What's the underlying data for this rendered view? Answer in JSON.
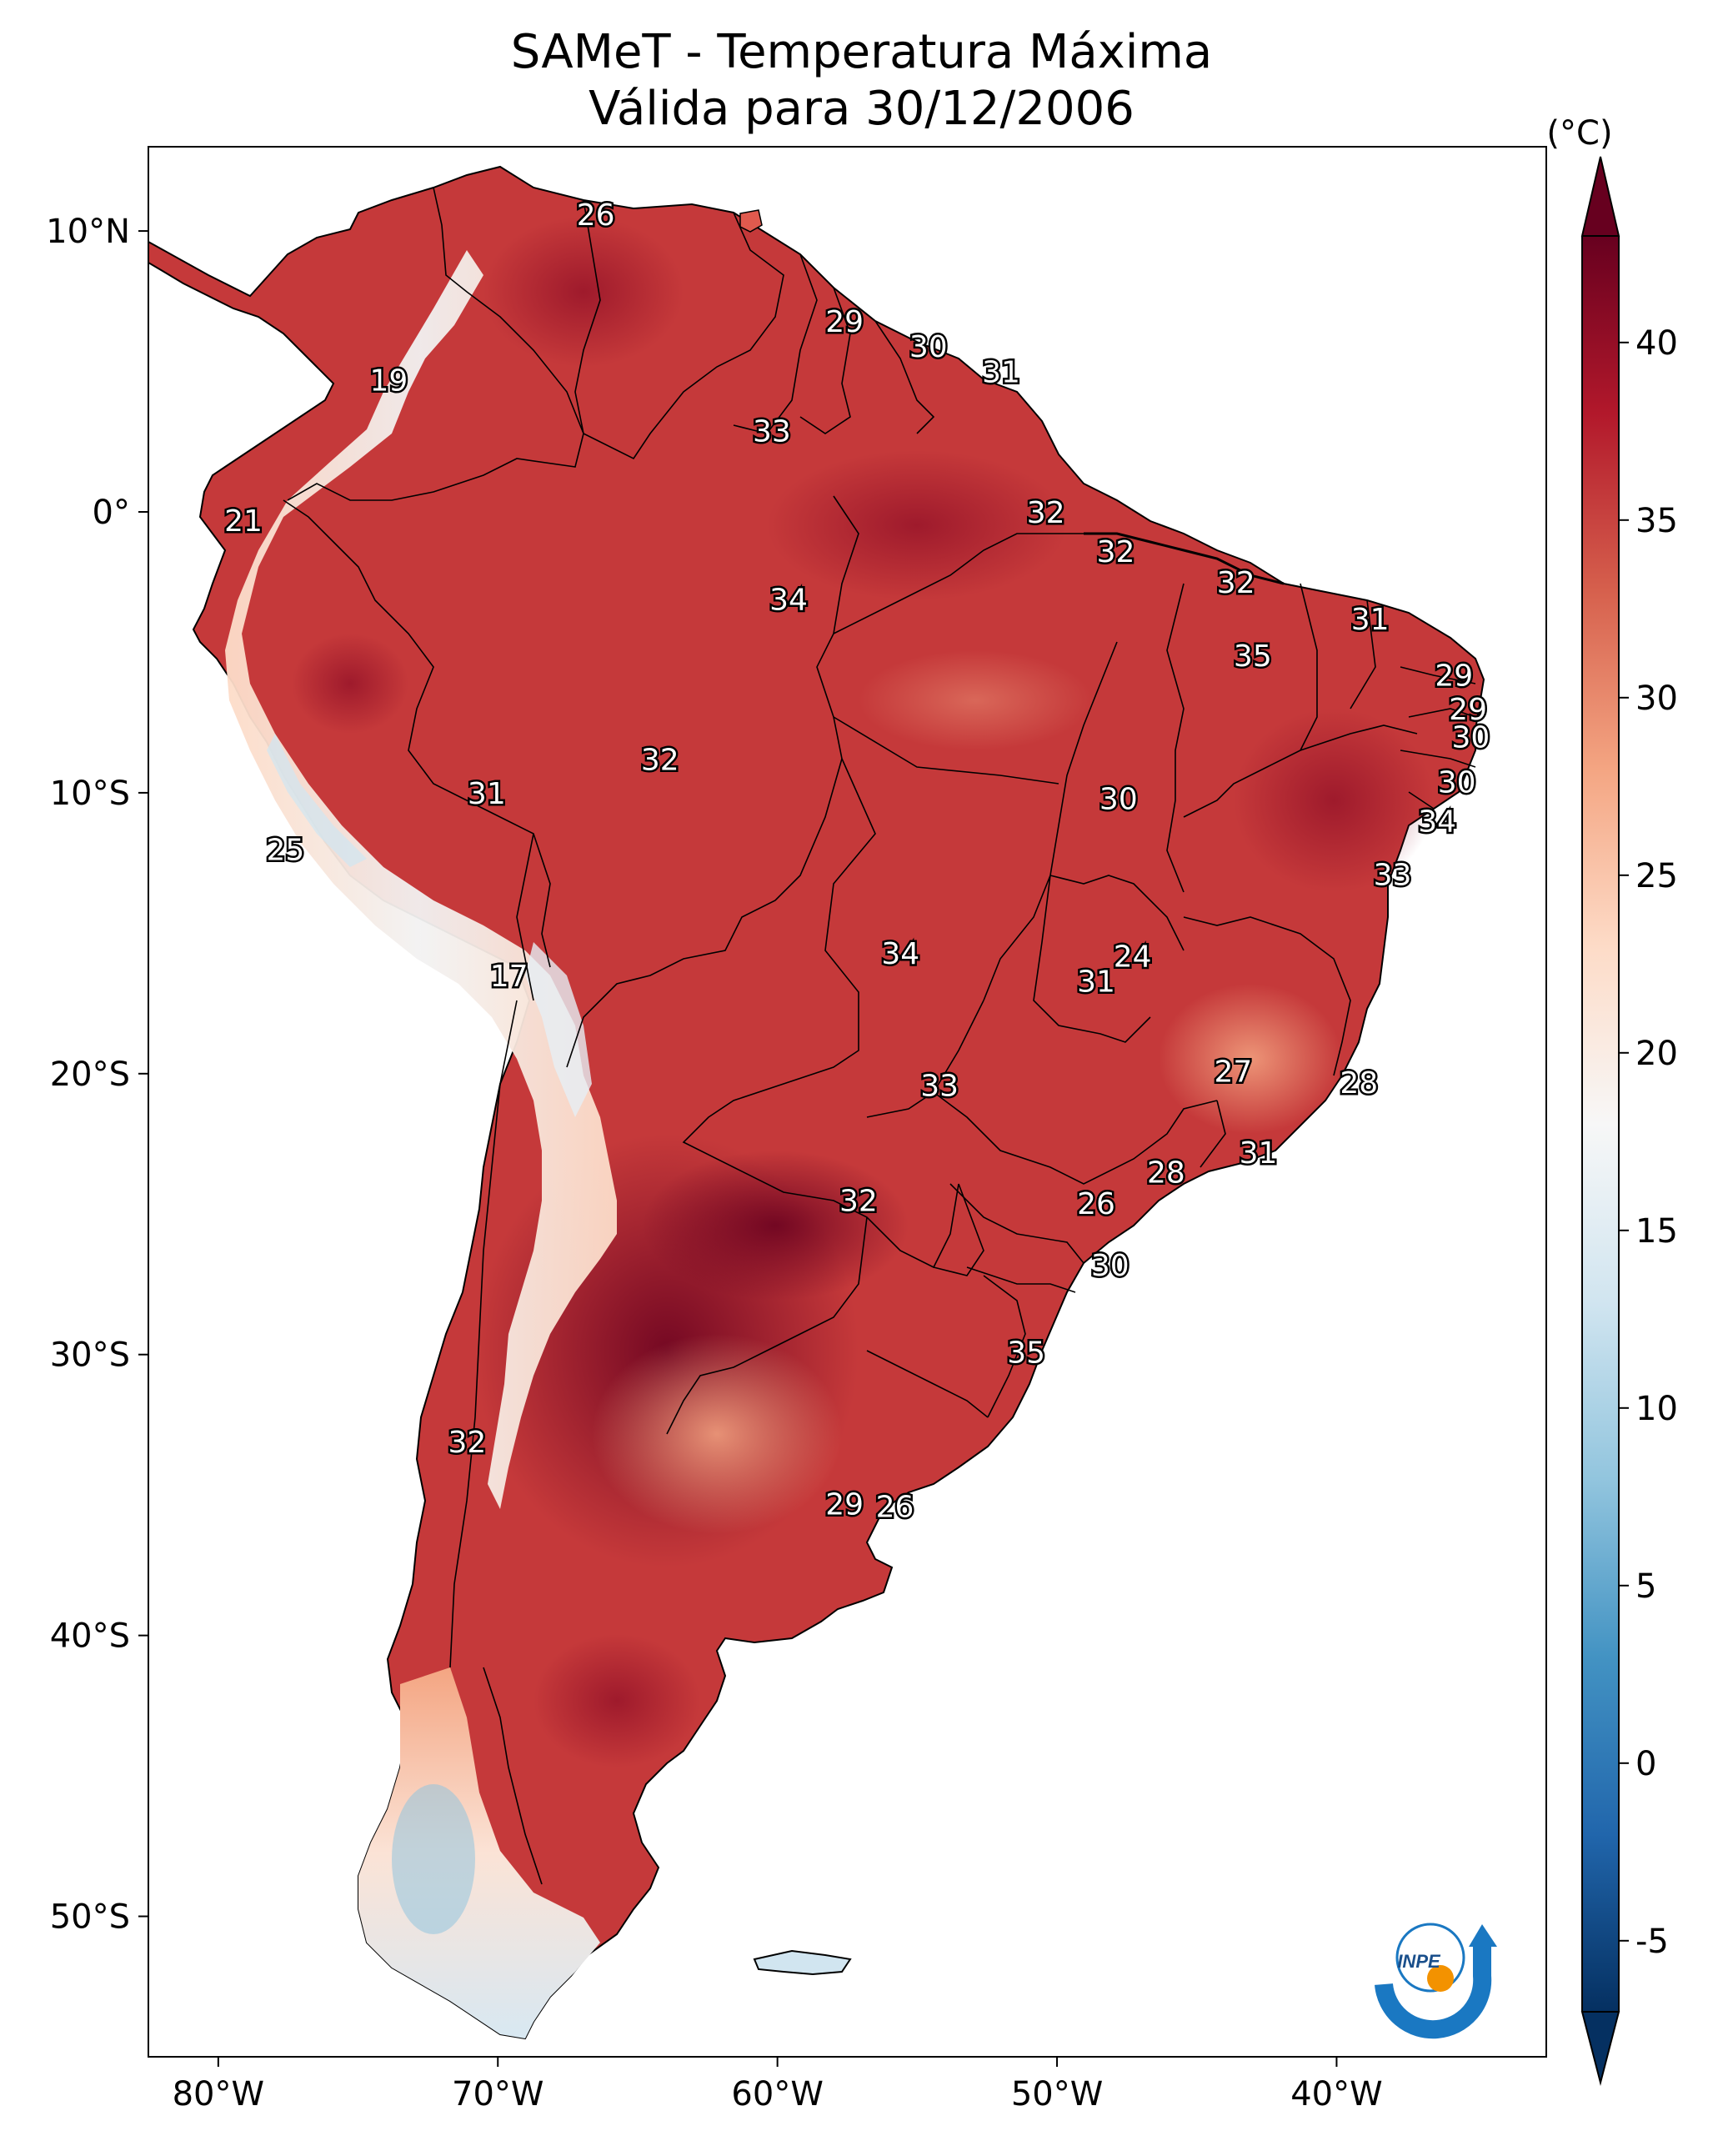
{
  "title": {
    "line1": "SAMeT - Temperatura Máxima",
    "line2": "Válida para 30/12/2006"
  },
  "map": {
    "lon_range": [
      -82.5,
      -32.5
    ],
    "lat_range": [
      -55,
      13
    ],
    "lon_ticks": [
      {
        "value": -80,
        "label": "80°W"
      },
      {
        "value": -70,
        "label": "70°W"
      },
      {
        "value": -60,
        "label": "60°W"
      },
      {
        "value": -50,
        "label": "50°W"
      },
      {
        "value": -40,
        "label": "40°W"
      }
    ],
    "lat_ticks": [
      {
        "value": 10,
        "label": "10°N"
      },
      {
        "value": 0,
        "label": "0°"
      },
      {
        "value": -10,
        "label": "10°S"
      },
      {
        "value": -20,
        "label": "20°S"
      },
      {
        "value": -30,
        "label": "30°S"
      },
      {
        "value": -40,
        "label": "40°S"
      },
      {
        "value": -50,
        "label": "50°S"
      }
    ],
    "contour_labels": [
      {
        "lon": -66.5,
        "lat": 10.6,
        "text": "26"
      },
      {
        "lon": -57.6,
        "lat": 6.8,
        "text": "29"
      },
      {
        "lon": -54.6,
        "lat": 5.9,
        "text": "30"
      },
      {
        "lon": -52.0,
        "lat": 5.0,
        "text": "31"
      },
      {
        "lon": -73.9,
        "lat": 4.7,
        "text": "19"
      },
      {
        "lon": -60.2,
        "lat": 2.9,
        "text": "33"
      },
      {
        "lon": -50.4,
        "lat": 0.0,
        "text": "32"
      },
      {
        "lon": -79.1,
        "lat": -0.3,
        "text": "21"
      },
      {
        "lon": -47.9,
        "lat": -1.4,
        "text": "32"
      },
      {
        "lon": -59.6,
        "lat": -3.1,
        "text": "34"
      },
      {
        "lon": -43.6,
        "lat": -2.5,
        "text": "32"
      },
      {
        "lon": -38.8,
        "lat": -3.8,
        "text": "31"
      },
      {
        "lon": -43.0,
        "lat": -5.1,
        "text": "35"
      },
      {
        "lon": -35.8,
        "lat": -5.8,
        "text": "29"
      },
      {
        "lon": -35.3,
        "lat": -7.0,
        "text": "29"
      },
      {
        "lon": -35.2,
        "lat": -8.0,
        "text": "30"
      },
      {
        "lon": -64.2,
        "lat": -8.8,
        "text": "32"
      },
      {
        "lon": -70.4,
        "lat": -10.0,
        "text": "31"
      },
      {
        "lon": -35.7,
        "lat": -9.6,
        "text": "30"
      },
      {
        "lon": -47.8,
        "lat": -10.2,
        "text": "30"
      },
      {
        "lon": -36.4,
        "lat": -11.0,
        "text": "34"
      },
      {
        "lon": -77.6,
        "lat": -12.0,
        "text": "25"
      },
      {
        "lon": -38.0,
        "lat": -12.9,
        "text": "33"
      },
      {
        "lon": -55.6,
        "lat": -15.7,
        "text": "34"
      },
      {
        "lon": -47.3,
        "lat": -15.8,
        "text": "24"
      },
      {
        "lon": -48.6,
        "lat": -16.7,
        "text": "31"
      },
      {
        "lon": -69.6,
        "lat": -16.5,
        "text": "17"
      },
      {
        "lon": -43.7,
        "lat": -19.9,
        "text": "27"
      },
      {
        "lon": -39.2,
        "lat": -20.3,
        "text": "28"
      },
      {
        "lon": -54.2,
        "lat": -20.4,
        "text": "33"
      },
      {
        "lon": -42.8,
        "lat": -22.8,
        "text": "31"
      },
      {
        "lon": -46.1,
        "lat": -23.5,
        "text": "28"
      },
      {
        "lon": -57.1,
        "lat": -24.5,
        "text": "32"
      },
      {
        "lon": -48.6,
        "lat": -24.6,
        "text": "26"
      },
      {
        "lon": -48.1,
        "lat": -26.8,
        "text": "30"
      },
      {
        "lon": -51.1,
        "lat": -29.9,
        "text": "35"
      },
      {
        "lon": -71.1,
        "lat": -33.1,
        "text": "32"
      },
      {
        "lon": -57.6,
        "lat": -35.3,
        "text": "29"
      },
      {
        "lon": -55.8,
        "lat": -35.4,
        "text": "26"
      }
    ]
  },
  "colorbar": {
    "unit_label": "(°C)",
    "range": [
      -7,
      43
    ],
    "ticks": [
      {
        "value": -5,
        "label": "-5"
      },
      {
        "value": 0,
        "label": "0"
      },
      {
        "value": 5,
        "label": "5"
      },
      {
        "value": 10,
        "label": "10"
      },
      {
        "value": 15,
        "label": "15"
      },
      {
        "value": 20,
        "label": "20"
      },
      {
        "value": 25,
        "label": "25"
      },
      {
        "value": 30,
        "label": "30"
      },
      {
        "value": 35,
        "label": "35"
      },
      {
        "value": 40,
        "label": "40"
      }
    ],
    "colors": [
      "#053061",
      "#2166ac",
      "#4393c3",
      "#92c5de",
      "#d1e5f0",
      "#f7f7f7",
      "#fddbc7",
      "#f4a582",
      "#d6604d",
      "#b2182b",
      "#67001f"
    ]
  },
  "logo": {
    "text": "INPE",
    "blue": "#1a78c2",
    "orange": "#f39200"
  }
}
